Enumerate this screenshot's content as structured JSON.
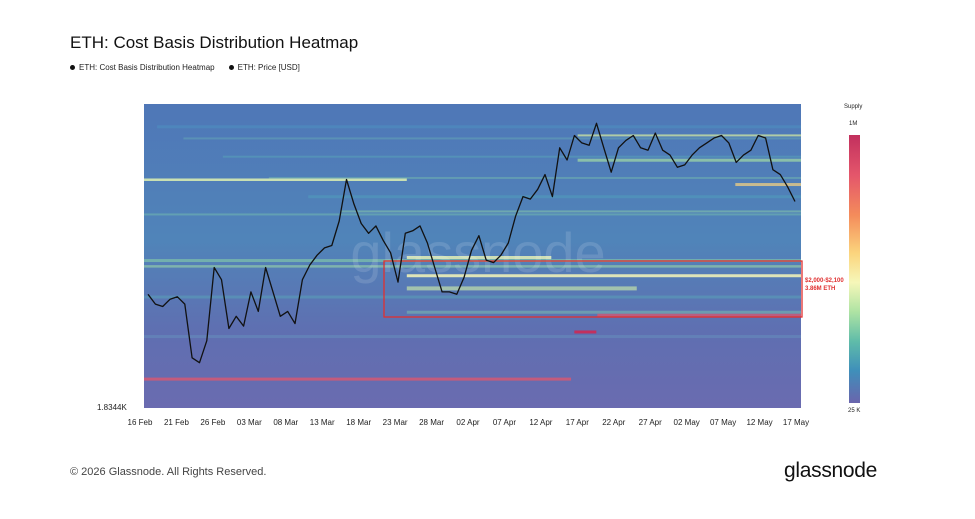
{
  "header": {
    "title": "ETH: Cost Basis Distribution Heatmap",
    "legend": [
      {
        "label": "ETH: Cost Basis Distribution Heatmap",
        "icon": "dot-icon"
      },
      {
        "label": "ETH: Price [USD]",
        "icon": "dot-icon"
      }
    ]
  },
  "colorbar": {
    "title": "Supply",
    "max_label": "1M",
    "min_label": "25 K"
  },
  "annotation": {
    "line1": "$2,000-$2,100",
    "line2": "3.86M ETH"
  },
  "footer": {
    "copyright": "© 2026 Glassnode. All Rights Reserved.",
    "logo": "glassnode"
  },
  "chart_data": {
    "type": "heatmap",
    "title": "ETH: Cost Basis Distribution Heatmap",
    "x_tick_labels": [
      "16 Feb",
      "21 Feb",
      "26 Feb",
      "03 Mar",
      "08 Mar",
      "13 Mar",
      "18 Mar",
      "23 Mar",
      "28 Mar",
      "02 Apr",
      "07 Apr",
      "12 Apr",
      "17 Apr",
      "22 Apr",
      "27 Apr",
      "02 May",
      "07 May",
      "12 May",
      "17 May"
    ],
    "y_min_label": "1.8344K",
    "y_scale": "relative",
    "colorscale": [
      "#6a65ad",
      "#3f8fba",
      "#5fbca9",
      "#aee3a3",
      "#f6f7b9",
      "#fbd47d",
      "#f48c5b",
      "#e4566b",
      "#c2305e"
    ],
    "colorbar_range": [
      "25 K",
      "1M"
    ],
    "grid": false,
    "legend_position": "top-left",
    "price_line_color": "#000000",
    "highlight_box_color": "#e03030",
    "price_series": {
      "name": "ETH: Price [USD]",
      "values": [
        0.39,
        0.35,
        0.34,
        0.37,
        0.38,
        0.35,
        0.13,
        0.11,
        0.2,
        0.5,
        0.45,
        0.25,
        0.3,
        0.26,
        0.4,
        0.32,
        0.5,
        0.4,
        0.3,
        0.32,
        0.27,
        0.45,
        0.51,
        0.55,
        0.58,
        0.59,
        0.69,
        0.86,
        0.76,
        0.68,
        0.64,
        0.67,
        0.61,
        0.56,
        0.44,
        0.64,
        0.65,
        0.67,
        0.6,
        0.5,
        0.4,
        0.4,
        0.39,
        0.46,
        0.57,
        0.63,
        0.53,
        0.52,
        0.55,
        0.6,
        0.71,
        0.79,
        0.78,
        0.82,
        0.88,
        0.79,
        0.99,
        0.94,
        1.04,
        1.01,
        1.0,
        1.09,
        0.99,
        0.89,
        0.99,
        1.02,
        1.04,
        0.99,
        0.98,
        1.05,
        0.98,
        0.96,
        0.91,
        0.92,
        0.96,
        0.99,
        1.01,
        1.03,
        1.04,
        1.01,
        0.93,
        0.96,
        0.98,
        1.04,
        1.03,
        0.9,
        0.88,
        0.83,
        0.77
      ]
    }
  }
}
